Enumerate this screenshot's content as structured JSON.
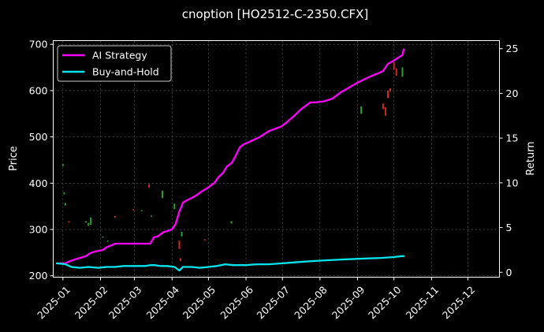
{
  "chart_data": {
    "type": "line",
    "title": "cnoption [HO2512-C-2350.CFX]",
    "ylabel": "Price",
    "y2label": "Return",
    "x_ticks": [
      "2025-01",
      "2025-02",
      "2025-03",
      "2025-04",
      "2025-05",
      "2025-06",
      "2025-07",
      "2025-08",
      "2025-09",
      "2025-10",
      "2025-11",
      "2025-12"
    ],
    "xlim": [
      "2024-12-24",
      "2025-12-27"
    ],
    "ylim": [
      197,
      708
    ],
    "y_ticks": [
      200,
      300,
      400,
      500,
      600,
      700
    ],
    "y2lim": [
      -0.55,
      25.9
    ],
    "y2_ticks": [
      0,
      5,
      10,
      15,
      20,
      25
    ],
    "grid": true,
    "legend_position": "top-left",
    "colors": {
      "up": "#2ca02c",
      "down": "#d62728",
      "ai": "#ff00ff",
      "bh": "#00e5ee",
      "grid": "#5a5a5a"
    },
    "series": [
      {
        "name": "AI Strategy",
        "axis": "right",
        "color": "#ff00ff",
        "x": [
          "2024-12-27",
          "2025-01-03",
          "2025-01-06",
          "2025-01-10",
          "2025-01-15",
          "2025-01-20",
          "2025-01-23",
          "2025-01-27",
          "2025-02-03",
          "2025-02-06",
          "2025-02-10",
          "2025-02-13",
          "2025-02-18",
          "2025-02-24",
          "2025-03-03",
          "2025-03-10",
          "2025-03-14",
          "2025-03-17",
          "2025-03-20",
          "2025-03-25",
          "2025-03-28",
          "2025-04-01",
          "2025-04-04",
          "2025-04-07",
          "2025-04-09",
          "2025-04-10",
          "2025-04-14",
          "2025-04-17",
          "2025-04-21",
          "2025-04-25",
          "2025-04-30",
          "2025-05-06",
          "2025-05-09",
          "2025-05-13",
          "2025-05-16",
          "2025-05-20",
          "2025-05-23",
          "2025-05-27",
          "2025-05-30",
          "2025-06-04",
          "2025-06-12",
          "2025-06-20",
          "2025-06-30",
          "2025-07-04",
          "2025-07-10",
          "2025-07-17",
          "2025-07-24",
          "2025-07-28",
          "2025-08-04",
          "2025-08-11",
          "2025-08-18",
          "2025-09-01",
          "2025-09-10",
          "2025-09-19",
          "2025-09-22",
          "2025-09-24",
          "2025-09-26",
          "2025-09-30",
          "2025-10-08",
          "2025-10-09"
        ],
        "y": [
          1.0,
          1.0,
          1.2,
          1.4,
          1.6,
          1.8,
          2.1,
          2.3,
          2.5,
          2.8,
          3.0,
          3.2,
          3.2,
          3.2,
          3.2,
          3.2,
          3.2,
          3.9,
          4.0,
          4.5,
          4.6,
          4.8,
          5.4,
          6.8,
          7.4,
          7.8,
          8.1,
          8.3,
          8.6,
          9.0,
          9.4,
          10.0,
          10.6,
          11.1,
          11.8,
          12.2,
          12.9,
          14.0,
          14.3,
          14.6,
          15.1,
          15.8,
          16.3,
          16.7,
          17.4,
          18.3,
          19.0,
          19.0,
          19.1,
          19.4,
          20.1,
          21.2,
          21.8,
          22.3,
          22.5,
          22.9,
          23.3,
          23.6,
          24.3,
          24.9
        ]
      },
      {
        "name": "Buy-and-Hold",
        "axis": "right",
        "color": "#00e5ee",
        "x": [
          "2024-12-27",
          "2025-01-03",
          "2025-01-08",
          "2025-01-15",
          "2025-01-22",
          "2025-01-30",
          "2025-02-06",
          "2025-02-13",
          "2025-02-20",
          "2025-03-03",
          "2025-03-10",
          "2025-03-14",
          "2025-03-18",
          "2025-03-22",
          "2025-03-28",
          "2025-04-03",
          "2025-04-07",
          "2025-04-10",
          "2025-04-17",
          "2025-04-24",
          "2025-05-01",
          "2025-05-08",
          "2025-05-15",
          "2025-05-21",
          "2025-05-26",
          "2025-06-01",
          "2025-06-10",
          "2025-06-20",
          "2025-07-01",
          "2025-07-10",
          "2025-07-20",
          "2025-08-01",
          "2025-08-15",
          "2025-09-01",
          "2025-09-20",
          "2025-10-01",
          "2025-10-07",
          "2025-10-09"
        ],
        "y": [
          1.0,
          0.9,
          0.6,
          0.5,
          0.6,
          0.5,
          0.6,
          0.6,
          0.7,
          0.7,
          0.7,
          0.8,
          0.8,
          0.7,
          0.7,
          0.6,
          0.2,
          0.6,
          0.6,
          0.5,
          0.6,
          0.7,
          0.9,
          0.8,
          0.8,
          0.8,
          0.9,
          0.9,
          1.0,
          1.1,
          1.2,
          1.3,
          1.4,
          1.5,
          1.6,
          1.7,
          1.8,
          1.8
        ]
      }
    ],
    "candles": [
      {
        "x": "2025-01-01",
        "open": 437,
        "close": 441
      },
      {
        "x": "2025-01-02",
        "open": 376,
        "close": 380
      },
      {
        "x": "2025-01-03",
        "open": 352,
        "close": 357
      },
      {
        "x": "2025-01-06",
        "open": 318,
        "close": 315
      },
      {
        "x": "2025-01-20",
        "open": 315,
        "close": 318
      },
      {
        "x": "2025-01-22",
        "open": 308,
        "close": 314
      },
      {
        "x": "2025-01-24",
        "open": 310,
        "close": 326
      },
      {
        "x": "2025-02-03",
        "open": 283,
        "close": 285
      },
      {
        "x": "2025-02-07",
        "open": 274,
        "close": 276
      },
      {
        "x": "2025-02-13",
        "open": 329,
        "close": 326
      },
      {
        "x": "2025-02-28",
        "open": 344,
        "close": 342
      },
      {
        "x": "2025-03-07",
        "open": 340,
        "close": 342
      },
      {
        "x": "2025-03-13",
        "open": 398,
        "close": 391
      },
      {
        "x": "2025-03-15",
        "open": 328,
        "close": 330
      },
      {
        "x": "2025-03-24",
        "open": 368,
        "close": 384
      },
      {
        "x": "2025-04-03",
        "open": 344,
        "close": 356
      },
      {
        "x": "2025-04-07",
        "open": 276,
        "close": 258
      },
      {
        "x": "2025-04-08",
        "open": 238,
        "close": 232
      },
      {
        "x": "2025-04-09",
        "open": 285,
        "close": 295
      },
      {
        "x": "2025-04-28",
        "open": 279,
        "close": 277
      },
      {
        "x": "2025-05-20",
        "open": 313,
        "close": 318
      },
      {
        "x": "2025-09-04",
        "open": 550,
        "close": 566
      },
      {
        "x": "2025-09-22",
        "open": 572,
        "close": 560
      },
      {
        "x": "2025-09-24",
        "open": 564,
        "close": 546
      },
      {
        "x": "2025-09-26",
        "open": 600,
        "close": 584
      },
      {
        "x": "2025-09-28",
        "open": 605,
        "close": 598
      },
      {
        "x": "2025-10-01",
        "open": 661,
        "close": 645
      },
      {
        "x": "2025-10-03",
        "open": 648,
        "close": 632
      },
      {
        "x": "2025-10-08",
        "open": 630,
        "close": 650
      }
    ]
  }
}
